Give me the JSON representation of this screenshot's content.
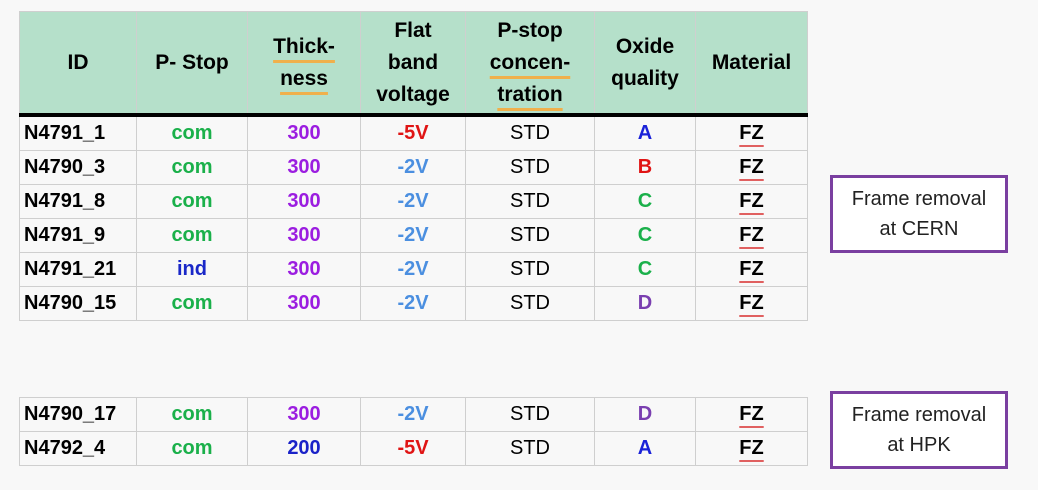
{
  "colors": {
    "header_bg": "#b5e0ca",
    "com": "#1ab04a",
    "ind": "#1a28c8",
    "thick_300": "#9b1de0",
    "thick_200": "#1a22c8",
    "v_neg5": "#e01414",
    "v_neg2": "#4b8fe0",
    "q_A": "#1a22d8",
    "q_B": "#e01414",
    "q_C": "#1ab04a",
    "q_D": "#7a3fb0",
    "frame_border": "#7a3fa0"
  },
  "header": {
    "id": [
      "ID"
    ],
    "pstop": [
      "P- Stop"
    ],
    "thickness": [
      "Thick-",
      "ness"
    ],
    "flatband": [
      "Flat",
      "band",
      "voltage"
    ],
    "conc": [
      "P-stop",
      "concen-",
      "tration"
    ],
    "oxide": [
      "Oxide",
      "quality"
    ],
    "material": [
      "Material"
    ]
  },
  "rows_cern": [
    {
      "id": "N4791_1",
      "pstop": "com",
      "thickness": "300",
      "voltage": "-5V",
      "conc": "STD",
      "oxide": "A",
      "material": "FZ"
    },
    {
      "id": "N4790_3",
      "pstop": "com",
      "thickness": "300",
      "voltage": "-2V",
      "conc": "STD",
      "oxide": "B",
      "material": "FZ"
    },
    {
      "id": "N4791_8",
      "pstop": "com",
      "thickness": "300",
      "voltage": "-2V",
      "conc": "STD",
      "oxide": "C",
      "material": "FZ"
    },
    {
      "id": "N4791_9",
      "pstop": "com",
      "thickness": "300",
      "voltage": "-2V",
      "conc": "STD",
      "oxide": "C",
      "material": "FZ"
    },
    {
      "id": "N4791_21",
      "pstop": "ind",
      "thickness": "300",
      "voltage": "-2V",
      "conc": "STD",
      "oxide": "C",
      "material": "FZ"
    },
    {
      "id": "N4790_15",
      "pstop": "com",
      "thickness": "300",
      "voltage": "-2V",
      "conc": "STD",
      "oxide": "D",
      "material": "FZ"
    }
  ],
  "rows_hpk": [
    {
      "id": "N4790_17",
      "pstop": "com",
      "thickness": "300",
      "voltage": "-2V",
      "conc": "STD",
      "oxide": "D",
      "material": "FZ"
    },
    {
      "id": "N4792_4",
      "pstop": "com",
      "thickness": "200",
      "voltage": "-5V",
      "conc": "STD",
      "oxide": "A",
      "material": "FZ"
    }
  ],
  "notes": {
    "cern": [
      "Frame removal",
      "at CERN"
    ],
    "hpk": [
      "Frame removal",
      "at HPK"
    ]
  }
}
